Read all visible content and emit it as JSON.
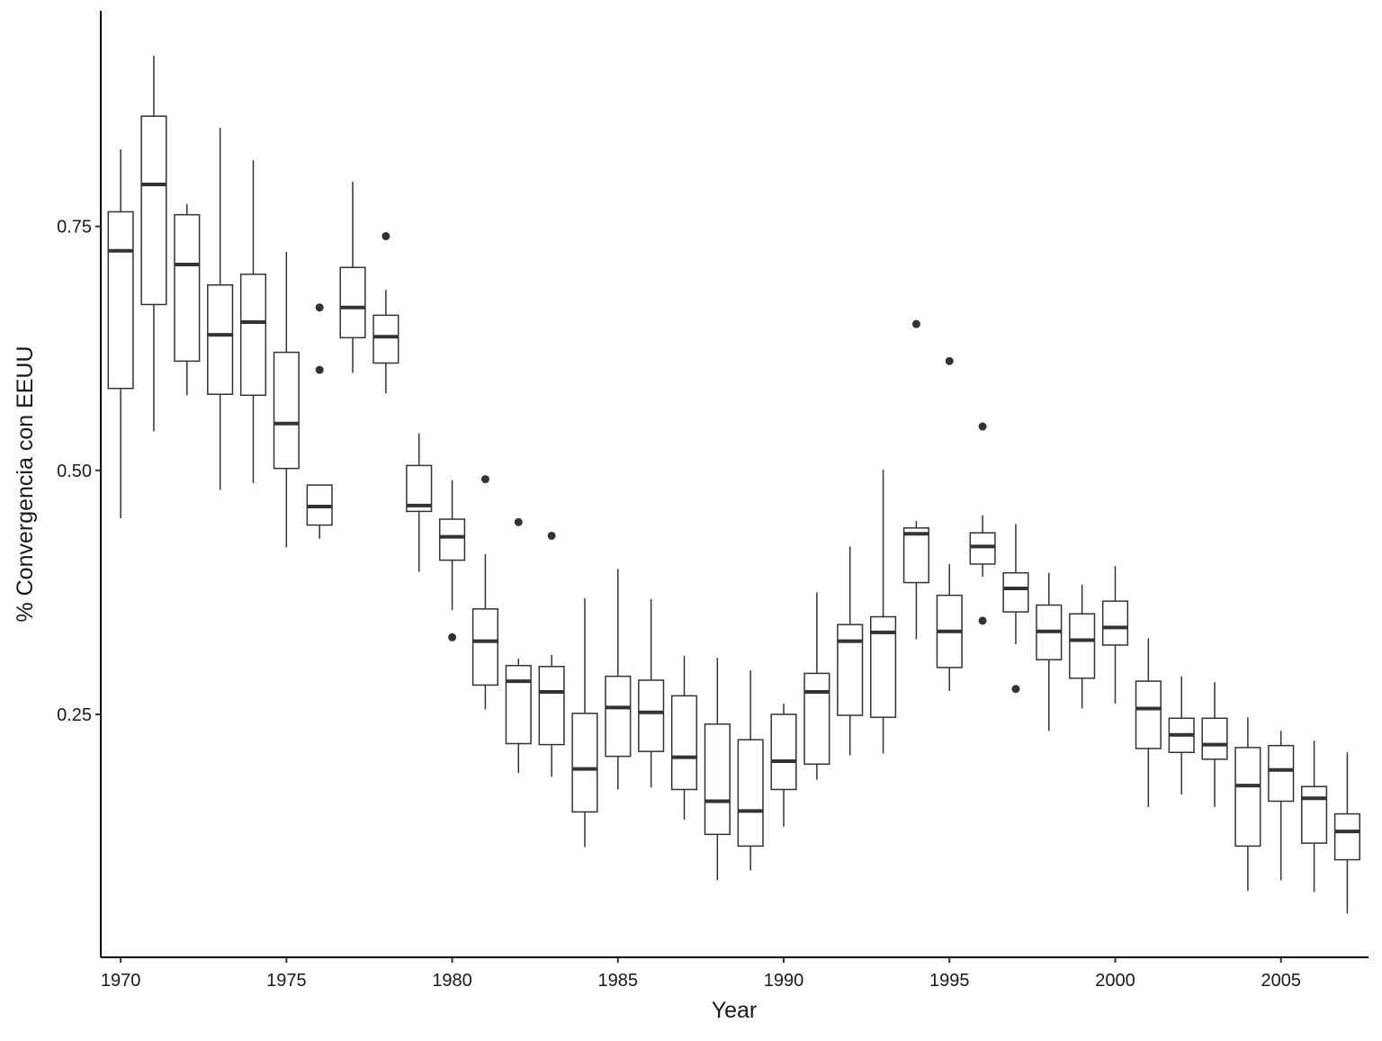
{
  "chart_data": {
    "type": "box",
    "x_label": "Year",
    "y_label": "% Convergencia con EEUU",
    "x": [
      1970,
      1971,
      1972,
      1973,
      1974,
      1975,
      1976,
      1977,
      1978,
      1979,
      1980,
      1981,
      1982,
      1983,
      1984,
      1985,
      1986,
      1987,
      1988,
      1989,
      1990,
      1991,
      1992,
      1993,
      1994,
      1995,
      1996,
      1997,
      1998,
      1999,
      2000,
      2001,
      2002,
      2003,
      2004,
      2005,
      2006,
      2007
    ],
    "low": [
      0.451,
      0.54,
      0.577,
      0.48,
      0.487,
      0.421,
      0.43,
      0.6,
      0.579,
      0.396,
      0.357,
      0.255,
      0.19,
      0.186,
      0.114,
      0.173,
      0.175,
      0.142,
      0.08,
      0.09,
      0.135,
      0.183,
      0.208,
      0.21,
      0.327,
      0.274,
      0.391,
      0.322,
      0.233,
      0.256,
      0.261,
      0.155,
      0.168,
      0.155,
      0.069,
      0.08,
      0.068,
      0.046
    ],
    "q1": [
      0.584,
      0.67,
      0.612,
      0.578,
      0.577,
      0.502,
      0.444,
      0.636,
      0.61,
      0.458,
      0.408,
      0.28,
      0.22,
      0.219,
      0.15,
      0.207,
      0.212,
      0.173,
      0.127,
      0.115,
      0.173,
      0.199,
      0.249,
      0.247,
      0.385,
      0.298,
      0.404,
      0.355,
      0.306,
      0.287,
      0.321,
      0.215,
      0.211,
      0.204,
      0.115,
      0.161,
      0.118,
      0.101
    ],
    "median": [
      0.725,
      0.793,
      0.711,
      0.639,
      0.652,
      0.548,
      0.463,
      0.667,
      0.637,
      0.464,
      0.432,
      0.325,
      0.284,
      0.273,
      0.194,
      0.257,
      0.252,
      0.206,
      0.161,
      0.151,
      0.202,
      0.273,
      0.325,
      0.334,
      0.435,
      0.335,
      0.422,
      0.379,
      0.335,
      0.326,
      0.339,
      0.256,
      0.229,
      0.219,
      0.177,
      0.193,
      0.164,
      0.13
    ],
    "q3": [
      0.765,
      0.863,
      0.762,
      0.69,
      0.701,
      0.621,
      0.485,
      0.708,
      0.659,
      0.505,
      0.45,
      0.358,
      0.3,
      0.299,
      0.251,
      0.289,
      0.285,
      0.269,
      0.24,
      0.224,
      0.25,
      0.292,
      0.342,
      0.35,
      0.441,
      0.372,
      0.436,
      0.395,
      0.362,
      0.353,
      0.366,
      0.284,
      0.246,
      0.246,
      0.216,
      0.218,
      0.176,
      0.148
    ],
    "high": [
      0.829,
      0.925,
      0.773,
      0.851,
      0.818,
      0.724,
      0.485,
      0.796,
      0.685,
      0.538,
      0.49,
      0.414,
      0.307,
      0.311,
      0.369,
      0.399,
      0.368,
      0.31,
      0.308,
      0.295,
      0.261,
      0.375,
      0.422,
      0.501,
      0.448,
      0.404,
      0.454,
      0.445,
      0.395,
      0.383,
      0.402,
      0.328,
      0.289,
      0.283,
      0.247,
      0.233,
      0.223,
      0.211
    ],
    "outliers": [
      [],
      [],
      [],
      [],
      [],
      [],
      [
        0.667,
        0.603
      ],
      [],
      [
        0.74
      ],
      [],
      [
        0.329
      ],
      [
        0.491
      ],
      [
        0.447
      ],
      [
        0.433
      ],
      [],
      [],
      [],
      [],
      [],
      [],
      [],
      [],
      [],
      [],
      [
        0.65
      ],
      [
        0.612
      ],
      [
        0.545,
        0.346
      ],
      [
        0.276
      ],
      [],
      [],
      [],
      [],
      [],
      [],
      [],
      [],
      [],
      []
    ],
    "color": "#333333",
    "xlim": [
      1969.4,
      2007.64
    ],
    "xticks": [
      1970,
      1975,
      1980,
      1985,
      1990,
      1995,
      2000,
      2005
    ],
    "ylim": [
      0.001,
      0.971
    ],
    "yticks": [
      0.25,
      {
        "value": 0.5,
        "label": "0.50"
      },
      0.75
    ]
  }
}
